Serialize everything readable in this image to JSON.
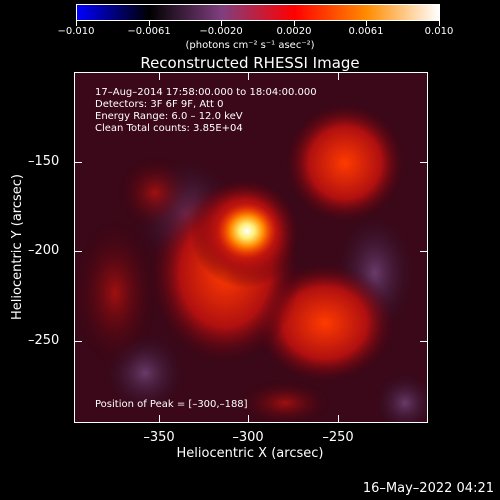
{
  "colorbar": {
    "ticks": [
      "−0.010",
      "−0.0061",
      "−0.0020",
      "0.0020",
      "0.0061",
      "0.010"
    ],
    "units": "(photons cm⁻² s⁻¹ asec⁻²)",
    "colors": [
      "#0000ff",
      "#000000",
      "#7f3f7f",
      "#ff0000",
      "#ff8c00",
      "#ffffff"
    ]
  },
  "title": "Reconstructed RHESSI Image",
  "info": {
    "line1": "17–Aug–2014 17:58:00.000 to 18:04:00.000",
    "line2": "Detectors: 3F 6F 9F, Att 0",
    "line3": "Energy Range: 6.0 – 12.0 keV",
    "line4": "Clean     Total counts: 3.85E+04"
  },
  "peak_label": "Position of Peak = [–300,–188]",
  "y_ticks": [
    "–150",
    "–200",
    "–250"
  ],
  "x_ticks": [
    "–350",
    "–300",
    "–250"
  ],
  "x_axis_title": "Heliocentric X (arcsec)",
  "y_axis_title": "Heliocentric Y (arcsec)",
  "datestamp": "16–May–2022 04:21"
}
